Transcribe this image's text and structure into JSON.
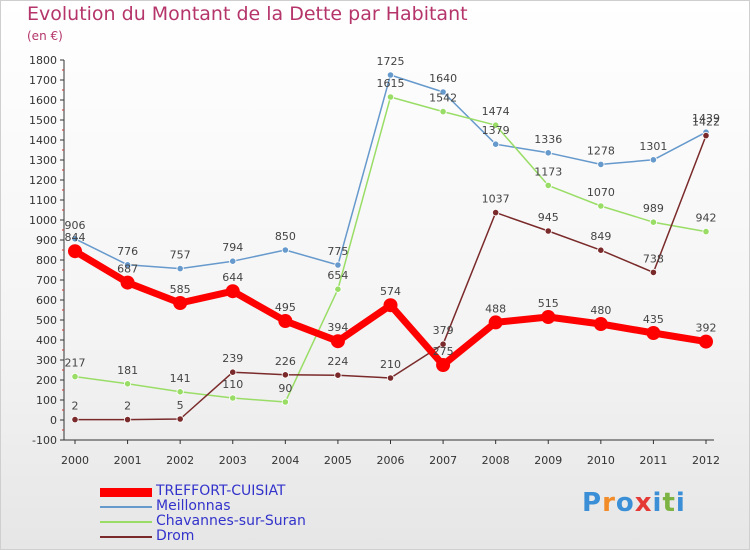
{
  "header": {
    "title": "Evolution du Montant de la Dette par Habitant",
    "subtitle": "(en €)"
  },
  "logo": {
    "letters": [
      "P",
      "r",
      "o",
      "x",
      "i",
      "t",
      "i"
    ],
    "colors": [
      "#3a8fd6",
      "#f28c28",
      "#3a8fd6",
      "#e53935",
      "#3a8fd6",
      "#7cb342",
      "#3a8fd6"
    ]
  },
  "chart_data": {
    "type": "line",
    "title": "Evolution du Montant de la Dette par Habitant",
    "ylabel": "(en €)",
    "xlabel": "",
    "x": [
      "2000",
      "2001",
      "2002",
      "2003",
      "2004",
      "2005",
      "2006",
      "2007",
      "2008",
      "2009",
      "2010",
      "2011",
      "2012"
    ],
    "ylim": [
      -100,
      1800
    ],
    "yticks": [
      -100,
      0,
      100,
      200,
      300,
      400,
      500,
      600,
      700,
      800,
      900,
      1000,
      1100,
      1200,
      1300,
      1400,
      1500,
      1600,
      1700,
      1800
    ],
    "grid": false,
    "legend": "bottom-left",
    "series": [
      {
        "name": "TREFFORT-CUISIAT",
        "color": "#ff0000",
        "width": 7,
        "values": [
          844,
          687,
          585,
          644,
          495,
          394,
          574,
          275,
          488,
          515,
          480,
          435,
          392
        ]
      },
      {
        "name": "Meillonnas",
        "color": "#6699cc",
        "width": 1.5,
        "values": [
          906,
          776,
          757,
          794,
          850,
          775,
          1725,
          1640,
          1379,
          1336,
          1278,
          1301,
          1439
        ]
      },
      {
        "name": "Chavannes-sur-Suran",
        "color": "#99dd66",
        "width": 1.5,
        "values": [
          217,
          181,
          141,
          110,
          90,
          654,
          1615,
          1542,
          1474,
          1173,
          1070,
          989,
          942
        ]
      },
      {
        "name": "Drom",
        "color": "#7a2a2a",
        "width": 1.5,
        "values": [
          2,
          2,
          5,
          239,
          226,
          224,
          210,
          379,
          1037,
          945,
          849,
          738,
          1422
        ]
      }
    ]
  }
}
